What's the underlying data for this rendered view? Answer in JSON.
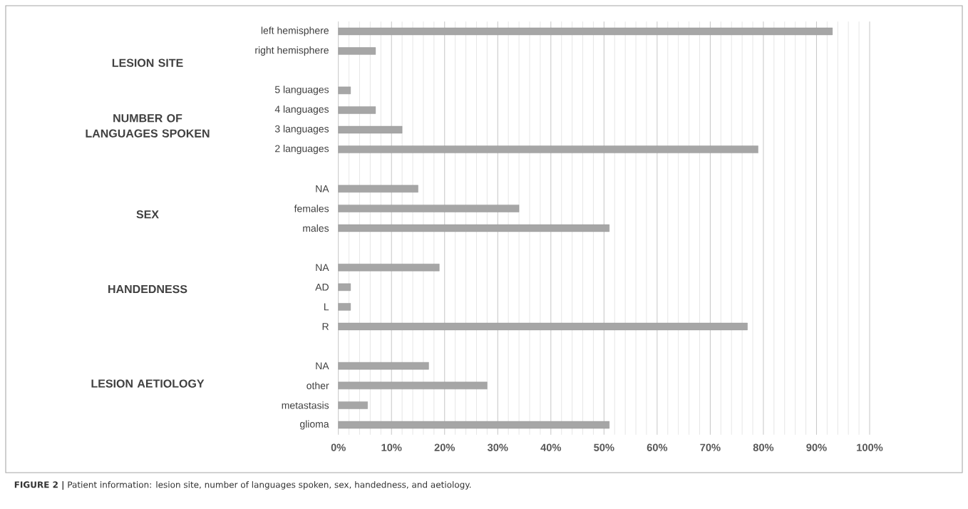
{
  "chart_data": {
    "type": "bar",
    "orientation": "horizontal",
    "color": "#a6a6a6",
    "categories": [
      "left hemisphere",
      "right hemisphere",
      null,
      "5 languages",
      "4 languages",
      "3 languages",
      "2 languages",
      null,
      "NA",
      "females",
      "males",
      null,
      "NA",
      "AD",
      "L",
      "R",
      null,
      "NA",
      "other",
      "metastasis",
      "glioma"
    ],
    "values": [
      93,
      7,
      null,
      2.3,
      7,
      12,
      79,
      null,
      15,
      34,
      51,
      null,
      19,
      2.3,
      2.3,
      77,
      null,
      17,
      28,
      5.5,
      51
    ],
    "xlim": [
      0,
      100
    ],
    "xticks": [
      {
        "value": 0,
        "label": "0%"
      },
      {
        "value": 10,
        "label": "10%"
      },
      {
        "value": 20,
        "label": "20%"
      },
      {
        "value": 30,
        "label": "30%"
      },
      {
        "value": 40,
        "label": "40%"
      },
      {
        "value": 50,
        "label": "50%"
      },
      {
        "value": 60,
        "label": "60%"
      },
      {
        "value": 70,
        "label": "70%"
      },
      {
        "value": 80,
        "label": "80%"
      },
      {
        "value": 90,
        "label": "90%"
      },
      {
        "value": 100,
        "label": "100%"
      }
    ],
    "grid": "x",
    "annotations": [
      "LESION SITE",
      "NUMBER OF LANGUAGES SPOKEN",
      "SEX",
      "HANDEDNESS",
      "LESION AETIOLOGY",
      "**FIGURE 2 |** Patient information: lesion site, number of languages spoken, sex, handedness, and aetiology."
    ]
  }
}
